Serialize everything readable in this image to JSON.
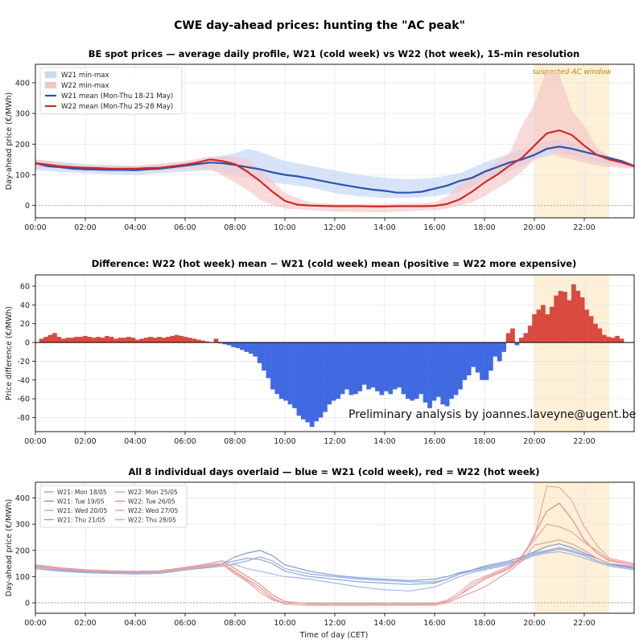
{
  "figure": {
    "title": "CWE day-ahead prices: hunting the \"AC peak\"",
    "watermark": "Preliminary analysis by joannes.laveyne@ugent.be",
    "x_ticks": [
      "00:00",
      "02:00",
      "04:00",
      "06:00",
      "08:00",
      "10:00",
      "12:00",
      "14:00",
      "16:00",
      "18:00",
      "20:00",
      "22:00"
    ],
    "x_label": "Time of day (CET)"
  },
  "chart_data": [
    {
      "id": "profile",
      "type": "line",
      "title": "BE spot prices — average daily profile, W21 (cold week) vs W22 (hot week), 15-min resolution",
      "ylabel": "Day-ahead price (€/MWh)",
      "xlim": [
        0,
        24
      ],
      "ylim": [
        -40,
        460
      ],
      "yticks": [
        0,
        100,
        200,
        300,
        400
      ],
      "grid": true,
      "legend_position": "top-left",
      "annotation": {
        "text": "suspected AC window",
        "x_start": 20,
        "x_end": 23
      },
      "series": [
        {
          "name": "W21 mean (Mon-Thu 18-21 May)",
          "color": "#2b55b0",
          "x": [
            0,
            0.5,
            1,
            1.5,
            2,
            2.5,
            3,
            3.5,
            4,
            4.5,
            5,
            5.5,
            6,
            6.5,
            7,
            7.5,
            8,
            8.5,
            9,
            9.5,
            10,
            10.5,
            11,
            11.5,
            12,
            12.5,
            13,
            13.5,
            14,
            14.5,
            15,
            15.5,
            16,
            16.5,
            17,
            17.5,
            18,
            18.5,
            19,
            19.5,
            20,
            20.5,
            21,
            21.5,
            22,
            22.5,
            23,
            23.5,
            24
          ],
          "y": [
            138,
            128,
            125,
            120,
            118,
            117,
            116,
            116,
            115,
            118,
            120,
            125,
            130,
            135,
            140,
            138,
            132,
            125,
            118,
            108,
            100,
            95,
            88,
            80,
            72,
            65,
            58,
            52,
            48,
            42,
            42,
            45,
            55,
            65,
            80,
            90,
            110,
            125,
            140,
            150,
            165,
            185,
            192,
            185,
            175,
            165,
            155,
            145,
            128
          ]
        },
        {
          "name": "W22 mean (Mon-Thu 25-28 May)",
          "color": "#cc2a2a",
          "x": [
            0,
            0.5,
            1,
            1.5,
            2,
            2.5,
            3,
            3.5,
            4,
            4.5,
            5,
            5.5,
            6,
            6.5,
            7,
            7.5,
            8,
            8.5,
            9,
            9.5,
            10,
            10.5,
            11,
            11.5,
            12,
            12.5,
            13,
            13.5,
            14,
            14.5,
            15,
            15.5,
            16,
            16.5,
            17,
            17.5,
            18,
            18.5,
            19,
            19.5,
            20,
            20.5,
            21,
            21.5,
            22,
            22.5,
            23,
            23.5,
            24
          ],
          "y": [
            138,
            133,
            128,
            125,
            123,
            122,
            120,
            120,
            120,
            122,
            123,
            128,
            133,
            140,
            150,
            145,
            135,
            110,
            80,
            45,
            15,
            3,
            0,
            -1,
            -2,
            -2,
            -2,
            -3,
            -3,
            -2,
            -2,
            -2,
            -1,
            5,
            20,
            45,
            75,
            100,
            130,
            155,
            195,
            235,
            245,
            230,
            195,
            165,
            150,
            140,
            128
          ]
        },
        {
          "name": "W21 min-max",
          "color": "#c9d9f5",
          "x": [
            0,
            2,
            4,
            6,
            7,
            8,
            8.5,
            9,
            10,
            11,
            12,
            13,
            14,
            15,
            16,
            17,
            18,
            19,
            20,
            20.5,
            21,
            21.5,
            22,
            23,
            24
          ],
          "ymin": [
            115,
            105,
            100,
            110,
            115,
            100,
            90,
            80,
            70,
            60,
            40,
            30,
            25,
            25,
            30,
            45,
            80,
            110,
            150,
            160,
            170,
            165,
            150,
            135,
            120
          ],
          "ymax": [
            150,
            135,
            130,
            140,
            155,
            170,
            185,
            175,
            145,
            130,
            115,
            100,
            90,
            85,
            90,
            105,
            140,
            170,
            195,
            210,
            215,
            205,
            195,
            160,
            135
          ]
        },
        {
          "name": "W22 min-max",
          "color": "#f5c6c6",
          "x": [
            0,
            2,
            4,
            6,
            7,
            8,
            8.5,
            9,
            9.5,
            10,
            11,
            12,
            14,
            16,
            16.5,
            17,
            17.5,
            18,
            19,
            19.5,
            20,
            20.5,
            21,
            21.5,
            22,
            22.5,
            23,
            24
          ],
          "ymin": [
            125,
            115,
            112,
            118,
            120,
            75,
            50,
            20,
            0,
            -10,
            -15,
            -20,
            -22,
            -15,
            -10,
            0,
            10,
            30,
            80,
            110,
            150,
            180,
            160,
            150,
            140,
            130,
            125,
            120
          ],
          "ymax": [
            150,
            130,
            128,
            145,
            160,
            160,
            150,
            120,
            80,
            40,
            10,
            5,
            5,
            10,
            30,
            70,
            95,
            115,
            170,
            260,
            330,
            445,
            430,
            310,
            260,
            190,
            160,
            135
          ]
        }
      ]
    },
    {
      "id": "difference",
      "type": "bar",
      "title": "Difference: W22 (hot week) mean − W21 (cold week) mean   (positive = W22 more expensive)",
      "ylabel": "Price difference (€/MWh)",
      "xlim": [
        0,
        24
      ],
      "ylim": [
        -95,
        72
      ],
      "yticks": [
        -80,
        -60,
        -40,
        -20,
        0,
        20,
        40,
        60
      ],
      "grid": true,
      "colors": {
        "positive": "#d94a41",
        "negative": "#4169e1"
      },
      "values": [
        4,
        6,
        8,
        10,
        6,
        4,
        5,
        5,
        6,
        6,
        7,
        6,
        5,
        6,
        5,
        7,
        6,
        4,
        5,
        5,
        6,
        5,
        3,
        4,
        5,
        6,
        5,
        6,
        5,
        6,
        7,
        8,
        7,
        6,
        5,
        4,
        3,
        2,
        1,
        0,
        4,
        -1,
        -2,
        -3,
        -5,
        -6,
        -8,
        -10,
        -12,
        -15,
        -22,
        -30,
        -38,
        -50,
        -55,
        -60,
        -62,
        -66,
        -70,
        -78,
        -82,
        -85,
        -90,
        -84,
        -80,
        -74,
        -66,
        -62,
        -60,
        -55,
        -50,
        -56,
        -55,
        -52,
        -45,
        -50,
        -48,
        -52,
        -56,
        -52,
        -55,
        -50,
        -48,
        -55,
        -60,
        -62,
        -60,
        -55,
        -64,
        -70,
        -62,
        -58,
        -66,
        -68,
        -60,
        -56,
        -50,
        -40,
        -35,
        -26,
        -32,
        -40,
        -40,
        -30,
        -15,
        -20,
        -10,
        10,
        15,
        -3,
        5,
        10,
        18,
        30,
        35,
        40,
        30,
        38,
        50,
        55,
        54,
        45,
        62,
        55,
        48,
        35,
        28,
        20,
        15,
        8,
        6,
        5,
        7,
        4
      ]
    },
    {
      "id": "individual_days",
      "type": "line",
      "title": "All 8 individual days overlaid — blue = W21 (cold week), red = W22 (hot week)",
      "ylabel": "Day-ahead price (€/MWh)",
      "xlabel": "Time of day (CET)",
      "xlim": [
        0,
        24
      ],
      "ylim": [
        -40,
        460
      ],
      "yticks": [
        0,
        100,
        200,
        300,
        400
      ],
      "grid": true,
      "legend_position": "top-left",
      "x": [
        0,
        1,
        2,
        3,
        4,
        5,
        6,
        7,
        7.5,
        8,
        8.5,
        9,
        9.5,
        10,
        11,
        12,
        13,
        14,
        15,
        16,
        16.5,
        17,
        17.5,
        18,
        19,
        19.5,
        20,
        20.5,
        21,
        21.5,
        22,
        22.5,
        23,
        24
      ],
      "series": [
        {
          "name": "W21: Mon 18/05",
          "color": "#8fa9dd",
          "y": [
            130,
            120,
            115,
            112,
            110,
            112,
            125,
            135,
            140,
            150,
            160,
            175,
            160,
            130,
            110,
            100,
            90,
            85,
            80,
            80,
            90,
            110,
            120,
            130,
            150,
            170,
            190,
            200,
            210,
            200,
            185,
            170,
            150,
            130
          ]
        },
        {
          "name": "W21: Tue 19/05",
          "color": "#7a96d4",
          "y": [
            140,
            125,
            118,
            115,
            114,
            118,
            130,
            140,
            150,
            175,
            190,
            200,
            180,
            145,
            120,
            105,
            95,
            90,
            85,
            90,
            100,
            115,
            125,
            140,
            160,
            175,
            195,
            215,
            225,
            210,
            190,
            170,
            150,
            135
          ]
        },
        {
          "name": "W21: Wed 20/05",
          "color": "#9eb5e3",
          "y": [
            135,
            122,
            116,
            113,
            112,
            115,
            128,
            138,
            145,
            145,
            130,
            120,
            110,
            100,
            90,
            75,
            60,
            50,
            45,
            60,
            80,
            100,
            115,
            125,
            145,
            160,
            180,
            190,
            195,
            185,
            170,
            155,
            140,
            125
          ]
        },
        {
          "name": "W21: Thu 21/05",
          "color": "#86a2da",
          "y": [
            140,
            128,
            120,
            116,
            115,
            118,
            130,
            140,
            150,
            160,
            170,
            165,
            150,
            120,
            100,
            90,
            80,
            75,
            70,
            75,
            90,
            110,
            125,
            135,
            155,
            165,
            185,
            195,
            205,
            195,
            180,
            160,
            145,
            130
          ]
        },
        {
          "name": "W22: Mon 25/05",
          "color": "#e89a9a",
          "y": [
            140,
            130,
            125,
            120,
            118,
            120,
            130,
            145,
            150,
            120,
            90,
            60,
            20,
            -5,
            -10,
            -10,
            -10,
            -10,
            -10,
            -10,
            0,
            20,
            40,
            60,
            120,
            160,
            220,
            230,
            240,
            225,
            200,
            170,
            150,
            140
          ]
        },
        {
          "name": "W22: Tue 26/05",
          "color": "#dd8a8a",
          "y": [
            145,
            133,
            126,
            122,
            120,
            122,
            135,
            150,
            160,
            130,
            100,
            70,
            30,
            5,
            -5,
            -5,
            -5,
            -5,
            -5,
            -5,
            5,
            30,
            60,
            90,
            130,
            170,
            260,
            350,
            380,
            320,
            240,
            190,
            160,
            145
          ]
        },
        {
          "name": "W22: Wed 27/05",
          "color": "#e6a3a3",
          "y": [
            135,
            128,
            122,
            118,
            116,
            118,
            128,
            140,
            145,
            110,
            80,
            40,
            10,
            0,
            -2,
            -2,
            -2,
            -3,
            -3,
            -2,
            10,
            40,
            80,
            100,
            140,
            180,
            250,
            445,
            440,
            390,
            290,
            220,
            170,
            150
          ]
        },
        {
          "name": "W22: Thu 28/05",
          "color": "#ee9f9f",
          "y": [
            140,
            130,
            124,
            120,
            118,
            120,
            132,
            145,
            150,
            115,
            85,
            50,
            15,
            0,
            -3,
            -3,
            -3,
            -3,
            -3,
            -3,
            5,
            30,
            70,
            95,
            135,
            175,
            240,
            300,
            290,
            270,
            230,
            200,
            165,
            145
          ]
        }
      ]
    }
  ]
}
